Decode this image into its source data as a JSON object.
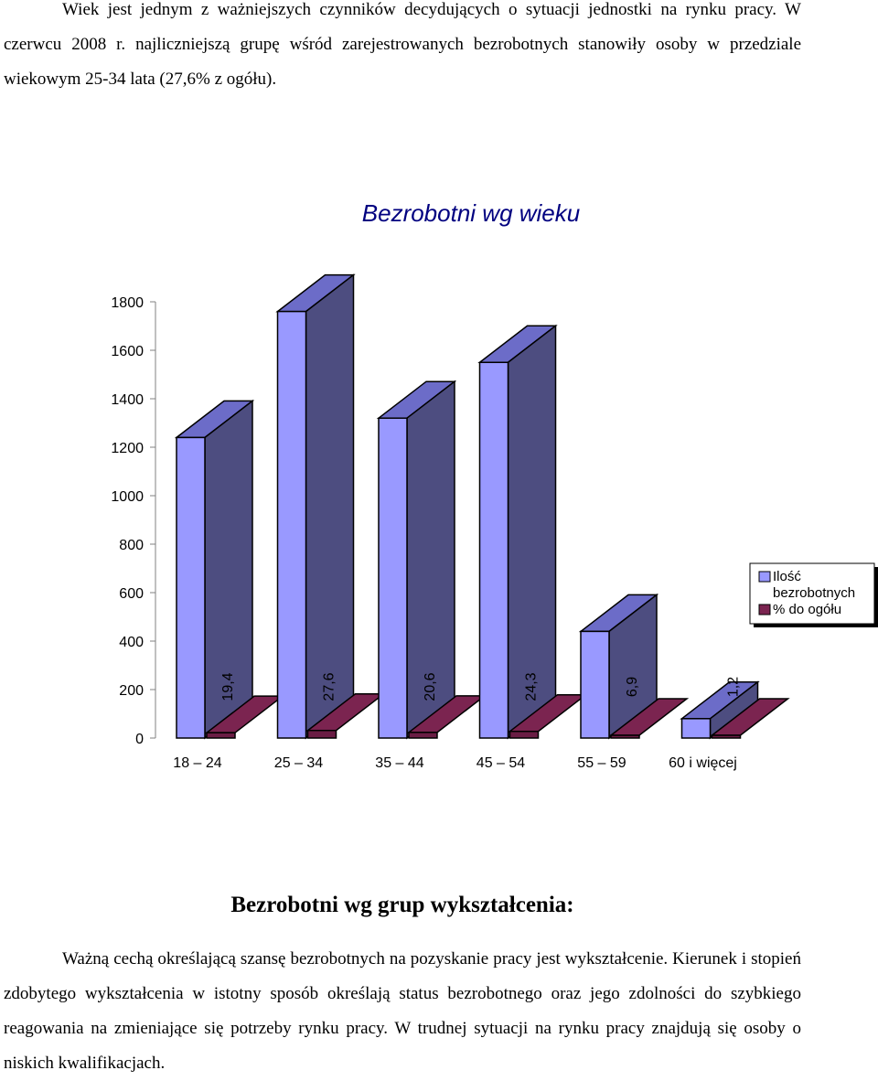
{
  "intro_paragraph": "Wiek jest jednym z ważniejszych czynników decydujących o sytuacji jednostki na rynku pracy. W czerwcu 2008 r. najliczniejszą grupę wśród zarejestrowanych bezrobotnych stanowiły osoby w przedziale wiekowym 25-34 lata (27,6% z ogółu).",
  "section_heading": "Bezrobotni wg grup wykształcenia:",
  "body_paragraph": "Ważną cechą określającą szansę bezrobotnych na pozyskanie pracy jest wykształcenie. Kierunek i stopień zdobytego wykształcenia w istotny sposób określają status bezrobotnego oraz jego zdolności do szybkiego reagowania na zmieniające się potrzeby rynku pracy. W trudnej sytuacji na rynku pracy znajdują się osoby o niskich kwalifikacjach.",
  "chart_data": {
    "type": "bar",
    "title": "Bezrobotni wg wieku",
    "categories": [
      "18 – 24",
      "25 – 34",
      "35 – 44",
      "45 – 54",
      "55 – 59",
      "60 i więcej"
    ],
    "series": [
      {
        "name": "Ilość bezrobotnych",
        "values": [
          1240,
          1760,
          1320,
          1550,
          440,
          80
        ],
        "color": "#9999ff"
      },
      {
        "name": "% do ogółu",
        "values": [
          19.4,
          27.6,
          20.6,
          24.3,
          6.9,
          1.2
        ],
        "color": "#7b2450"
      }
    ],
    "data_labels": [
      "19,4",
      "27,6",
      "20,6",
      "24,3",
      "6,9",
      "1,2"
    ],
    "ylim": [
      0,
      1800
    ],
    "yticks": [
      0,
      200,
      400,
      600,
      800,
      1000,
      1200,
      1400,
      1600,
      1800
    ],
    "xlabel": "",
    "ylabel": "",
    "legend_position": "right",
    "grid": false
  }
}
